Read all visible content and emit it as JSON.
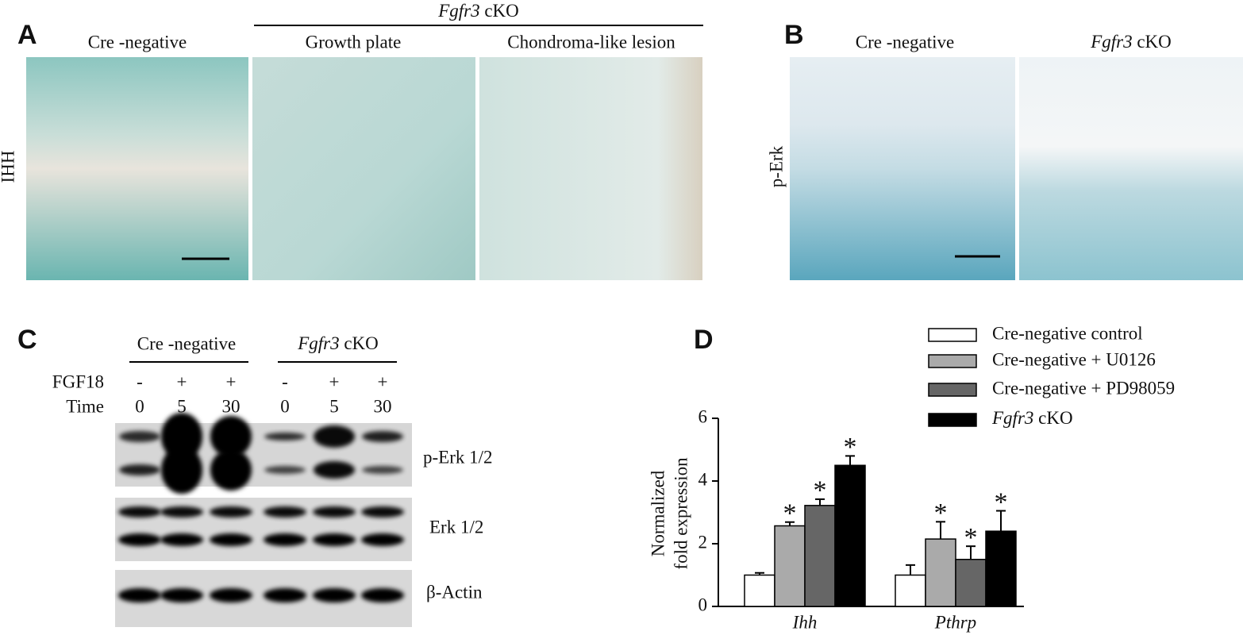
{
  "panel_a": {
    "letter": "A",
    "group_label": "Fgfr3 cKO",
    "columns": [
      "Cre -negative",
      "Growth plate",
      "Chondroma-like lesion"
    ],
    "row_label": "IHH"
  },
  "panel_b": {
    "letter": "B",
    "columns": [
      "Cre -negative",
      "Fgfr3 cKO"
    ],
    "row_label": "p-Erk"
  },
  "panel_c": {
    "letter": "C",
    "groups": [
      "Cre -negative",
      "Fgfr3 cKO"
    ],
    "row_labels": [
      "FGF18",
      "Time"
    ],
    "fgf18": [
      "-",
      "+",
      "+",
      "-",
      "+",
      "+"
    ],
    "time": [
      "0",
      "5",
      "30",
      "0",
      "5",
      "30"
    ],
    "bands": [
      "p-Erk 1/2",
      "Erk 1/2",
      "β-Actin"
    ]
  },
  "chart_data": {
    "type": "bar",
    "letter": "D",
    "y_label": [
      "Normalized",
      "fold expression"
    ],
    "categories": [
      "Ihh",
      "Pthrp"
    ],
    "ylim": [
      0,
      6
    ],
    "yticks": [
      0,
      2,
      4,
      6
    ],
    "series": [
      {
        "name": "Cre-negative control",
        "color": "#ffffff",
        "values": [
          1.0,
          1.0
        ],
        "errors": [
          0.07,
          0.32
        ]
      },
      {
        "name": "Cre-negative + U0126",
        "color": "#aaaaaa",
        "values": [
          2.57,
          2.15
        ],
        "errors": [
          0.12,
          0.55
        ],
        "significance": [
          "*",
          "*"
        ]
      },
      {
        "name": "Cre-negative + PD98059",
        "color": "#666666",
        "values": [
          3.22,
          1.5
        ],
        "errors": [
          0.2,
          0.42
        ],
        "significance": [
          "*",
          "*"
        ]
      },
      {
        "name": "Fgfr3 cKO",
        "color": "#000000",
        "values": [
          4.5,
          2.4
        ],
        "errors": [
          0.3,
          0.65
        ],
        "significance": [
          "*",
          "*"
        ]
      }
    ]
  }
}
